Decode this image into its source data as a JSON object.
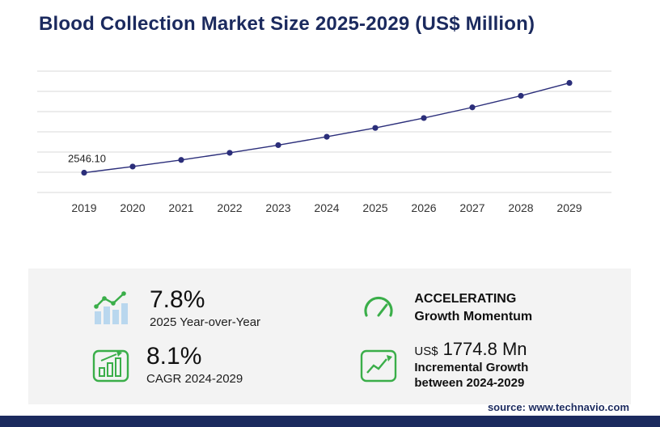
{
  "title": "Blood Collection Market Size 2025-2029 (US$ Million)",
  "chart_data": {
    "type": "line",
    "title": "Blood Collection Market Size 2025-2029 (US$ Million)",
    "x": [
      "2019",
      "2020",
      "2021",
      "2022",
      "2023",
      "2024",
      "2025",
      "2026",
      "2027",
      "2028",
      "2029"
    ],
    "series": [
      {
        "name": "Blood Collection Market Size (US$ Million)",
        "values": [
          2546.1,
          2748,
          2966,
          3201,
          3455,
          3731,
          4022,
          4348,
          4700,
          5082,
          5506
        ]
      }
    ],
    "first_point_label": "2546.10",
    "xlabel": "",
    "ylabel": "",
    "ylim": [
      2000,
      6000
    ],
    "grid": "horizontal",
    "gridline_count": 7,
    "legend": "none",
    "line_color": "#2b2e7a"
  },
  "stats": {
    "yoy": {
      "value": "7.8%",
      "label": "2025 Year-over-Year"
    },
    "momentum": {
      "line1": "ACCELERATING",
      "line2": "Growth Momentum"
    },
    "cagr": {
      "value": "8.1%",
      "label": "CAGR 2024-2029"
    },
    "incremental": {
      "prefix": "US$",
      "value": "1774.8 Mn",
      "label1": "Incremental Growth",
      "label2": "between 2024-2029"
    }
  },
  "footer": {
    "source": "source: www.technavio.com"
  },
  "colors": {
    "navy": "#1b2a5e",
    "green": "#3aae49",
    "panel": "#f3f3f3",
    "line": "#2b2e7a",
    "grid": "#d9d9d9",
    "bar_fill": "#b9d7ee"
  }
}
